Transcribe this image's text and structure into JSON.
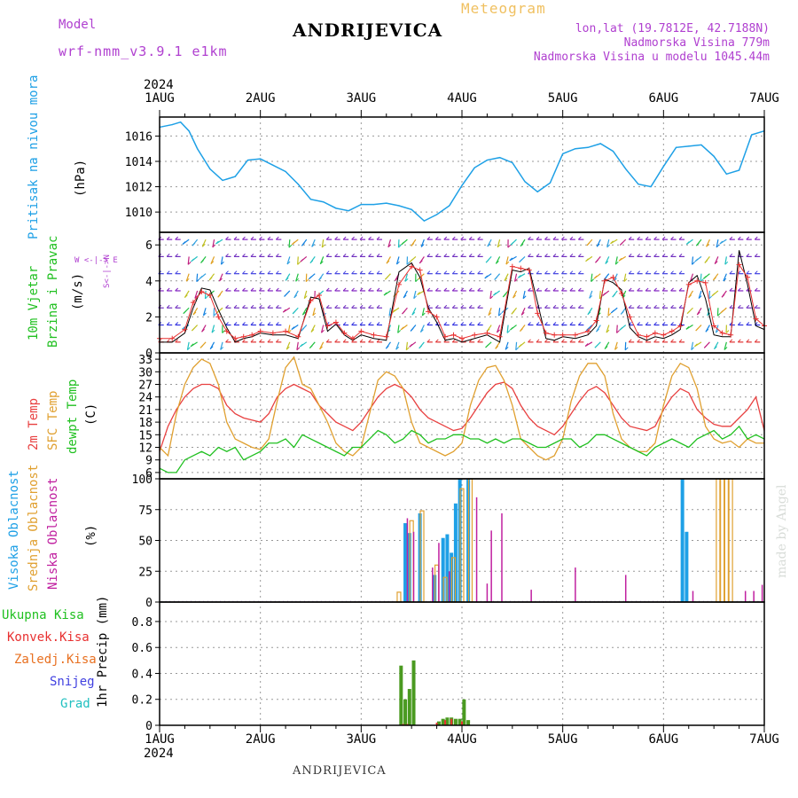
{
  "header": {
    "model_label": "Model",
    "model_name": "wrf-nmm_v3.9.1  e1km",
    "title": "ANDRIJEVICA",
    "meteogram": "Meteogram",
    "coords": "lon,lat (19.7812E, 42.7188N)",
    "elevation": "Nadmorska Visina 779m",
    "model_elevation": "Nadmorska Visina u modelu 1045.44m"
  },
  "footer": {
    "station": "ANDRIJEVICA",
    "watermark": "made by Angel"
  },
  "x_axis": {
    "year": "2024",
    "labels": [
      "1AUG",
      "2AUG",
      "3AUG",
      "4AUG",
      "5AUG",
      "6AUG",
      "7AUG"
    ],
    "range_hours": [
      0,
      144
    ]
  },
  "panels": {
    "pressure": {
      "label1": "Pritisak na nivou mora",
      "unit": "(hPa)"
    },
    "wind": {
      "label1": "10m Vjetar",
      "label2": "Brzina i Pravac",
      "unit": "(m/s)",
      "compass": "W <-|-> E",
      "compass_ns": "S<-|->N"
    },
    "temp": {
      "label1": "2m Temp",
      "label2": "SFC Temp",
      "label3": "dewpt Temp",
      "unit": "(C)"
    },
    "cloud": {
      "label1": "Visoka Oblacnost",
      "label2": "Srednja Oblacnost",
      "label3": "Niska Oblacnost",
      "unit": "(%)"
    },
    "precip": {
      "legend": [
        "Ukupna Kisa",
        "Konvek.Kisa",
        "Zaledj.Kisa",
        "Snijeg",
        "Grad"
      ],
      "unit": "1hr Precip (mm)"
    }
  },
  "colors": {
    "pressure": "#1ea0e6",
    "wind_speed": "#000000",
    "wind_max": "#e83030",
    "temp2m": "#e84040",
    "sfc_temp": "#e0a030",
    "dewpt": "#20c020",
    "cloud_high": "#1ea0e6",
    "cloud_mid": "#e0a030",
    "cloud_low": "#c020a0",
    "precip_total": "#4a9a20",
    "precip_conv": "#e83030",
    "precip_frz": "#e87020",
    "precip_snow": "#4040e0",
    "precip_hail": "#20c0c0",
    "model": "#b040d0"
  },
  "chart_data": [
    {
      "type": "line",
      "title": "",
      "ylabel": "Pritisak na nivou mora (hPa)",
      "ylim": [
        1008.4,
        1017.5
      ],
      "yticks": [
        1010,
        1012,
        1014,
        1016
      ],
      "x_hours": [
        0,
        3,
        5,
        7,
        9,
        12,
        15,
        18,
        21,
        24,
        27,
        30,
        33,
        36,
        39,
        42,
        45,
        48,
        51,
        54,
        57,
        60,
        63,
        66,
        69,
        72,
        75,
        78,
        81,
        84,
        87,
        90,
        93,
        96,
        99,
        102,
        105,
        108,
        111,
        114,
        117,
        120,
        123,
        126,
        129,
        132,
        135,
        138,
        141,
        144
      ],
      "series": [
        {
          "values": [
            1016.7,
            1016.9,
            1017.1,
            1016.4,
            1015.0,
            1013.4,
            1012.5,
            1012.8,
            1014.1,
            1014.2,
            1013.7,
            1013.2,
            1012.2,
            1011.0,
            1010.8,
            1010.3,
            1010.1,
            1010.6,
            1010.6,
            1010.7,
            1010.5,
            1010.2,
            1009.3,
            1009.8,
            1010.5,
            1012.1,
            1013.5,
            1014.1,
            1014.3,
            1013.9,
            1012.4,
            1011.6,
            1012.3,
            1014.6,
            1015.0,
            1015.1,
            1015.4,
            1014.8,
            1013.4,
            1012.2,
            1012.0,
            1013.6,
            1015.1,
            1015.2,
            1015.3,
            1014.4,
            1013.0,
            1013.3,
            1016.1,
            1016.4
          ]
        }
      ]
    },
    {
      "type": "line",
      "title": "",
      "ylabel": "10m Vjetar Brzina i Pravac (m/s)",
      "ylim": [
        0,
        6.7
      ],
      "yticks": [
        0,
        2,
        4,
        6
      ],
      "x_hours": [
        0,
        3,
        6,
        8,
        10,
        12,
        14,
        16,
        18,
        20,
        22,
        24,
        27,
        30,
        33,
        36,
        38,
        40,
        42,
        44,
        46,
        48,
        51,
        54,
        57,
        60,
        62,
        64,
        66,
        68,
        70,
        72,
        75,
        78,
        81,
        84,
        86,
        88,
        90,
        92,
        94,
        96,
        99,
        102,
        104,
        106,
        108,
        110,
        112,
        114,
        116,
        118,
        120,
        122,
        124,
        126,
        128,
        130,
        132,
        134,
        136,
        138,
        140,
        142,
        144
      ],
      "series": [
        {
          "name": "speed",
          "values": [
            0.6,
            0.6,
            1.1,
            2.5,
            3.6,
            3.5,
            2.4,
            1.4,
            0.6,
            0.8,
            0.9,
            1.1,
            1.0,
            1.0,
            0.8,
            3.1,
            3.0,
            1.2,
            1.6,
            1.0,
            0.7,
            1.0,
            0.8,
            0.7,
            4.5,
            5.0,
            4.2,
            2.5,
            1.7,
            0.7,
            0.8,
            0.6,
            0.8,
            1.0,
            0.6,
            4.6,
            4.5,
            4.7,
            2.8,
            0.8,
            0.7,
            0.9,
            0.8,
            1.0,
            1.5,
            4.1,
            3.9,
            3.5,
            1.4,
            0.9,
            0.7,
            0.9,
            0.8,
            1.0,
            1.3,
            3.9,
            4.3,
            3.0,
            1.0,
            0.9,
            0.9,
            5.7,
            3.8,
            1.5,
            1.3
          ]
        },
        {
          "name": "max",
          "values": [
            0.8,
            0.8,
            1.3,
            2.8,
            3.4,
            3.2,
            2.0,
            1.2,
            0.8,
            0.9,
            1.0,
            1.2,
            1.1,
            1.2,
            0.9,
            2.9,
            3.2,
            1.5,
            1.7,
            1.1,
            0.8,
            1.2,
            1.0,
            0.9,
            3.8,
            4.8,
            4.6,
            2.3,
            2.0,
            0.9,
            1.0,
            0.8,
            1.0,
            1.1,
            0.9,
            4.8,
            4.7,
            4.6,
            2.2,
            1.1,
            1.0,
            1.0,
            1.0,
            1.2,
            1.8,
            4.0,
            4.2,
            3.3,
            2.0,
            1.0,
            0.9,
            1.1,
            1.0,
            1.2,
            1.5,
            3.8,
            4.0,
            3.9,
            1.5,
            1.1,
            1.0,
            4.9,
            4.2,
            1.9,
            1.5
          ]
        }
      ]
    },
    {
      "type": "line",
      "title": "",
      "ylabel": "Temp (C)",
      "ylim": [
        4.5,
        34.5
      ],
      "yticks": [
        6,
        9,
        12,
        15,
        18,
        21,
        24,
        27,
        30,
        33
      ],
      "x_hours": [
        0,
        2,
        4,
        6,
        8,
        10,
        12,
        14,
        16,
        18,
        20,
        22,
        24,
        26,
        28,
        30,
        32,
        34,
        36,
        38,
        40,
        42,
        44,
        46,
        48,
        50,
        52,
        54,
        56,
        58,
        60,
        62,
        64,
        66,
        68,
        70,
        72,
        74,
        76,
        78,
        80,
        82,
        84,
        86,
        88,
        90,
        92,
        94,
        96,
        98,
        100,
        102,
        104,
        106,
        108,
        110,
        112,
        114,
        116,
        118,
        120,
        122,
        124,
        126,
        128,
        130,
        132,
        134,
        136,
        138,
        140,
        142,
        144
      ],
      "series": [
        {
          "name": "2m Temp",
          "values": [
            11,
            17,
            21,
            24,
            26,
            27,
            27,
            26,
            22,
            20,
            19,
            18.5,
            18,
            20,
            24,
            26,
            27,
            26,
            25,
            22,
            20,
            18,
            17,
            16,
            18,
            21,
            24,
            26,
            27,
            26,
            24,
            21,
            19,
            18,
            17,
            16,
            16.5,
            19,
            22,
            25,
            27,
            27.5,
            26,
            22,
            19,
            17,
            16,
            15,
            17,
            20,
            23,
            25.5,
            26.5,
            25,
            22,
            19,
            17,
            16.5,
            16,
            17,
            21,
            24,
            26,
            25,
            21,
            19,
            17.5,
            17,
            17,
            19,
            21,
            24,
            16
          ]
        },
        {
          "name": "SFC Temp",
          "values": [
            12,
            10,
            20,
            27,
            31,
            33,
            32,
            27,
            18,
            14,
            13,
            12,
            11.5,
            14,
            23,
            31,
            33.5,
            27,
            26,
            22,
            18,
            13,
            11,
            10,
            12,
            20,
            28,
            30,
            29,
            26,
            18,
            13,
            12,
            11,
            10,
            11,
            13,
            22,
            28,
            31,
            31.5,
            28,
            22,
            14,
            12,
            10,
            9,
            10,
            14,
            23,
            29,
            32,
            32,
            29,
            20,
            14,
            12,
            11,
            11,
            13,
            22,
            29,
            32,
            31,
            26,
            17,
            14,
            13,
            13.5,
            12,
            14,
            13,
            13
          ]
        },
        {
          "name": "dewpt Temp",
          "values": [
            7,
            6,
            6,
            9,
            10,
            11,
            10,
            12,
            11,
            12,
            9,
            10,
            11,
            13,
            13,
            14,
            12,
            15,
            14,
            13,
            12,
            11,
            10,
            12,
            12,
            14,
            16,
            15,
            13,
            14,
            16,
            15,
            13,
            14,
            14,
            15,
            15,
            14,
            14,
            13,
            14,
            13,
            14,
            14,
            13,
            12,
            12,
            13,
            14,
            14,
            12,
            13,
            15,
            15,
            14,
            13,
            12,
            11,
            10,
            12,
            13,
            14,
            13,
            12,
            14,
            15,
            16,
            14,
            15,
            17,
            14,
            15,
            14
          ]
        }
      ]
    },
    {
      "type": "bar",
      "title": "",
      "ylabel": "Oblacnost (%)",
      "ylim": [
        0,
        100
      ],
      "yticks": [
        0,
        25,
        50,
        75,
        100
      ],
      "series": [
        {
          "name": "Visoka Oblacnost",
          "x_hours": [
            58.5,
            59.5,
            62,
            65.5,
            67.5,
            68.5,
            69.5,
            70.5,
            71.5,
            73.5,
            124.5,
            125.5
          ],
          "values": [
            64,
            56,
            72,
            22,
            52,
            55,
            40,
            80,
            100,
            100,
            100,
            57
          ]
        },
        {
          "name": "Srednja Oblacnost",
          "x_hours": [
            57,
            60,
            62.5,
            66,
            68,
            70,
            72,
            74,
            133,
            134,
            135,
            136,
            150
          ],
          "values": [
            8,
            66,
            74,
            30,
            20,
            36,
            92,
            100,
            100,
            100,
            100,
            100,
            0
          ]
        },
        {
          "name": "Niska Oblacnost",
          "x_hours": [
            59,
            60.5,
            65,
            66.5,
            69,
            75.5,
            78,
            79,
            81.5,
            88.5,
            99,
            111,
            127,
            139.5,
            141.5,
            143.5
          ],
          "values": [
            68,
            57,
            28,
            48,
            25,
            85,
            15,
            58,
            72,
            10,
            28,
            22,
            9,
            9,
            9,
            14
          ]
        }
      ]
    },
    {
      "type": "bar",
      "title": "",
      "ylabel": "1hr Precip (mm)",
      "ylim": [
        0,
        0.95
      ],
      "yticks": [
        0,
        0.2,
        0.4,
        0.6,
        0.8
      ],
      "series": [
        {
          "name": "Ukupna Kisa",
          "x_hours": [
            57.5,
            58.5,
            59.5,
            60.5,
            66.5,
            67.5,
            68.5,
            69.5,
            70.5,
            71.5,
            72.5,
            73.5
          ],
          "values": [
            0.46,
            0.2,
            0.28,
            0.5,
            0.03,
            0.05,
            0.06,
            0.06,
            0.05,
            0.05,
            0.2,
            0.04
          ]
        },
        {
          "name": "Konvek.Kisa",
          "x_hours": [
            58,
            59,
            66,
            68,
            69.5,
            72
          ],
          "values": [
            0.01,
            0.01,
            0.02,
            0.04,
            0.05,
            0.03
          ]
        }
      ]
    }
  ]
}
